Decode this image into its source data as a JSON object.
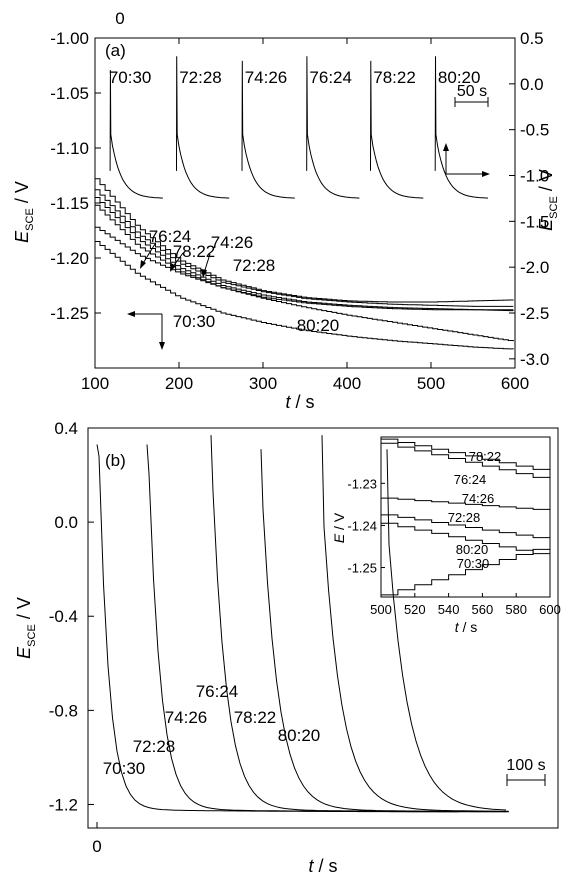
{
  "chart_data": [
    {
      "panel": "(a)",
      "type": "line",
      "xlabel": "t / s",
      "ylabel_left": "E_SCE / V",
      "ylabel_right": "E_SCE / V",
      "xlim": [
        100,
        600
      ],
      "ylim_left": [
        -1.3,
        -1.0
      ],
      "ylim_right": [
        -3.1,
        0.5
      ],
      "x_ticks": [
        "100",
        "200",
        "300",
        "400",
        "500",
        "600"
      ],
      "y_ticks_left": [
        "-1.00",
        "-1.05",
        "-1.10",
        "-1.15",
        "-1.20",
        "-1.25"
      ],
      "y_ticks_right": [
        "0.5",
        "0.0",
        "-0.5",
        "-1.0",
        "-1.5",
        "-2.0",
        "-2.5",
        "-3.0"
      ],
      "top_label": "0",
      "scale_bar": "50 s",
      "transients": [
        {
          "name": "70:30",
          "start": 118,
          "peak": 0.15
        },
        {
          "name": "72:28",
          "start": 197,
          "peak": 0.3
        },
        {
          "name": "74:26",
          "start": 275,
          "peak": 0.25
        },
        {
          "name": "76:24",
          "start": 352,
          "peak": 0.3
        },
        {
          "name": "78:22",
          "start": 428,
          "peak": 0.25
        },
        {
          "name": "80:20",
          "start": 505,
          "peak": 0.3
        }
      ],
      "series": [
        {
          "name": "70:30",
          "x": [
            100,
            150,
            200,
            250,
            300,
            350,
            400,
            450,
            500,
            550,
            600
          ],
          "y": [
            -1.185,
            -1.215,
            -1.236,
            -1.25,
            -1.259,
            -1.266,
            -1.271,
            -1.275,
            -1.278,
            -1.281,
            -1.283
          ]
        },
        {
          "name": "72:28",
          "x": [
            100,
            150,
            200,
            250,
            300,
            350,
            400,
            450,
            500,
            550,
            600
          ],
          "y": [
            -1.128,
            -1.172,
            -1.202,
            -1.22,
            -1.23,
            -1.236,
            -1.239,
            -1.24,
            -1.24,
            -1.239,
            -1.238
          ]
        },
        {
          "name": "74:26",
          "x": [
            100,
            150,
            200,
            250,
            300,
            350,
            400,
            450,
            500,
            550,
            600
          ],
          "y": [
            -1.138,
            -1.178,
            -1.205,
            -1.222,
            -1.231,
            -1.237,
            -1.24,
            -1.242,
            -1.243,
            -1.244,
            -1.244
          ]
        },
        {
          "name": "76:24",
          "x": [
            100,
            150,
            200,
            250,
            300,
            350,
            400,
            450,
            500,
            550,
            600
          ],
          "y": [
            -1.145,
            -1.183,
            -1.209,
            -1.225,
            -1.234,
            -1.24,
            -1.243,
            -1.245,
            -1.246,
            -1.247,
            -1.247
          ]
        },
        {
          "name": "78:22",
          "x": [
            100,
            150,
            200,
            250,
            300,
            350,
            400,
            450,
            500,
            550,
            600
          ],
          "y": [
            -1.152,
            -1.189,
            -1.212,
            -1.227,
            -1.236,
            -1.241,
            -1.244,
            -1.246,
            -1.247,
            -1.247,
            -1.248
          ]
        },
        {
          "name": "80:20",
          "x": [
            100,
            150,
            200,
            250,
            300,
            350,
            400,
            450,
            500,
            550,
            600
          ],
          "y": [
            -1.172,
            -1.197,
            -1.214,
            -1.227,
            -1.237,
            -1.245,
            -1.252,
            -1.258,
            -1.264,
            -1.27,
            -1.276
          ]
        }
      ]
    },
    {
      "panel": "(b)",
      "type": "line",
      "xlabel": "t / s",
      "ylabel": "E_SCE / V",
      "ylim": [
        -1.3,
        0.4
      ],
      "x_ticks": [
        "0"
      ],
      "y_ticks": [
        "0.4",
        "0.0",
        "-0.4",
        "-0.8",
        "-1.2"
      ],
      "scale_bar": "100 s",
      "series": [
        {
          "name": "70:30",
          "start": 0,
          "peak": 0.33
        },
        {
          "name": "72:28",
          "start": 50,
          "peak": 0.33
        },
        {
          "name": "74:26",
          "start": 114,
          "peak": 0.37
        },
        {
          "name": "76:24",
          "start": 164,
          "peak": 0.31
        },
        {
          "name": "78:22",
          "start": 225,
          "peak": 0.37
        },
        {
          "name": "80:20",
          "start": 290,
          "peak": 0.31
        }
      ],
      "inset": {
        "xlabel": "t / s",
        "ylabel": "E / V",
        "xlim": [
          500,
          600
        ],
        "ylim": [
          -1.257,
          -1.219
        ],
        "x_ticks": [
          "500",
          "520",
          "540",
          "560",
          "580",
          "600"
        ],
        "y_ticks": [
          "-1.23",
          "-1.24",
          "-1.25"
        ],
        "series": [
          {
            "name": "78:22",
            "x": [
              500,
              600
            ],
            "y": [
              -1.2195,
              -1.2275
            ]
          },
          {
            "name": "76:24",
            "x": [
              500,
              600
            ],
            "y": [
              -1.2205,
              -1.2295
            ]
          },
          {
            "name": "74:26",
            "x": [
              500,
              600
            ],
            "y": [
              -1.2335,
              -1.2365
            ]
          },
          {
            "name": "72:28",
            "x": [
              500,
              600
            ],
            "y": [
              -1.2375,
              -1.2435
            ]
          },
          {
            "name": "80:20",
            "x": [
              500,
              600
            ],
            "y": [
              -1.2395,
              -1.2475
            ]
          },
          {
            "name": "70:30",
            "x": [
              500,
              600
            ],
            "y": [
              -1.2565,
              -1.2445
            ]
          }
        ]
      }
    }
  ]
}
